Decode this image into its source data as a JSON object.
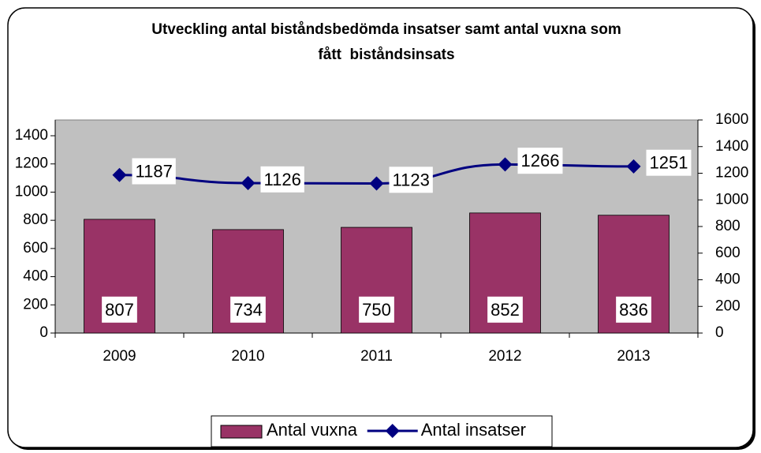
{
  "chart_data": {
    "type": "bar",
    "title": [
      "Utveckling antal biståndsbedömda insatser samt antal vuxna som",
      "fått  biståndsinsats"
    ],
    "categories": [
      "2009",
      "2010",
      "2011",
      "2012",
      "2013"
    ],
    "series": [
      {
        "name": "Antal vuxna",
        "type": "bar",
        "color": "#993366",
        "values": [
          807,
          734,
          750,
          852,
          836
        ]
      },
      {
        "name": "Antal insatser",
        "type": "line",
        "axis": "y2",
        "color": "#000080",
        "values": [
          1187,
          1126,
          1123,
          1266,
          1251
        ]
      }
    ],
    "ylim": [
      0,
      1512
    ],
    "yticks": [
      0,
      200,
      400,
      600,
      800,
      1000,
      1200,
      1400
    ],
    "y2lim": [
      0,
      1600
    ],
    "y2ticks": [
      0,
      200,
      400,
      600,
      800,
      1000,
      1200,
      1400,
      1600
    ],
    "legend": "bottom"
  }
}
